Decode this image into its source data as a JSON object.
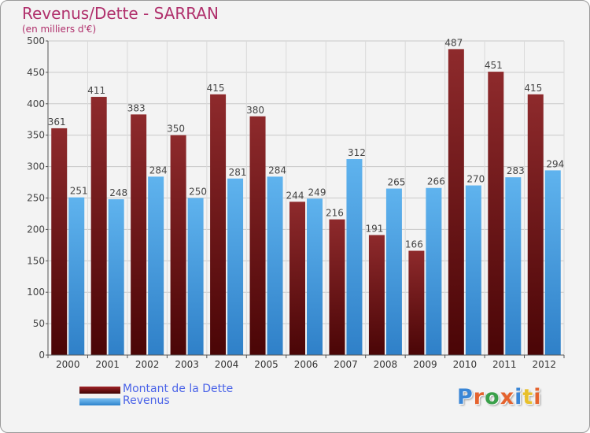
{
  "chart_data": {
    "type": "bar",
    "title": "Revenus/Dette - SARRAN",
    "subtitle": "(en milliers d'€)",
    "categories": [
      "2000",
      "2001",
      "2002",
      "2003",
      "2004",
      "2005",
      "2006",
      "2007",
      "2008",
      "2009",
      "2010",
      "2011",
      "2012"
    ],
    "series": [
      {
        "name": "Montant de la Dette",
        "color": "#7a1c1e",
        "values": [
          361,
          411,
          383,
          350,
          415,
          380,
          244,
          216,
          191,
          166,
          487,
          451,
          415
        ]
      },
      {
        "name": "Revenus",
        "color": "#4aa3e6",
        "values": [
          251,
          248,
          284,
          250,
          281,
          284,
          249,
          312,
          265,
          266,
          270,
          283,
          294
        ]
      }
    ],
    "ylim": [
      0,
      500
    ],
    "yticks": [
      0,
      50,
      100,
      150,
      200,
      250,
      300,
      350,
      400,
      450,
      500
    ],
    "grid": true,
    "legend_position": "bottom-left"
  },
  "logo": {
    "text": "Proxiti",
    "letters": [
      "P",
      "r",
      "o",
      "x",
      "i",
      "t",
      "i"
    ],
    "colors": [
      "#3a86d6",
      "#e5632e",
      "#3aa04a",
      "#e5632e",
      "#3a86d6",
      "#e8c02b",
      "#e5632e"
    ]
  }
}
